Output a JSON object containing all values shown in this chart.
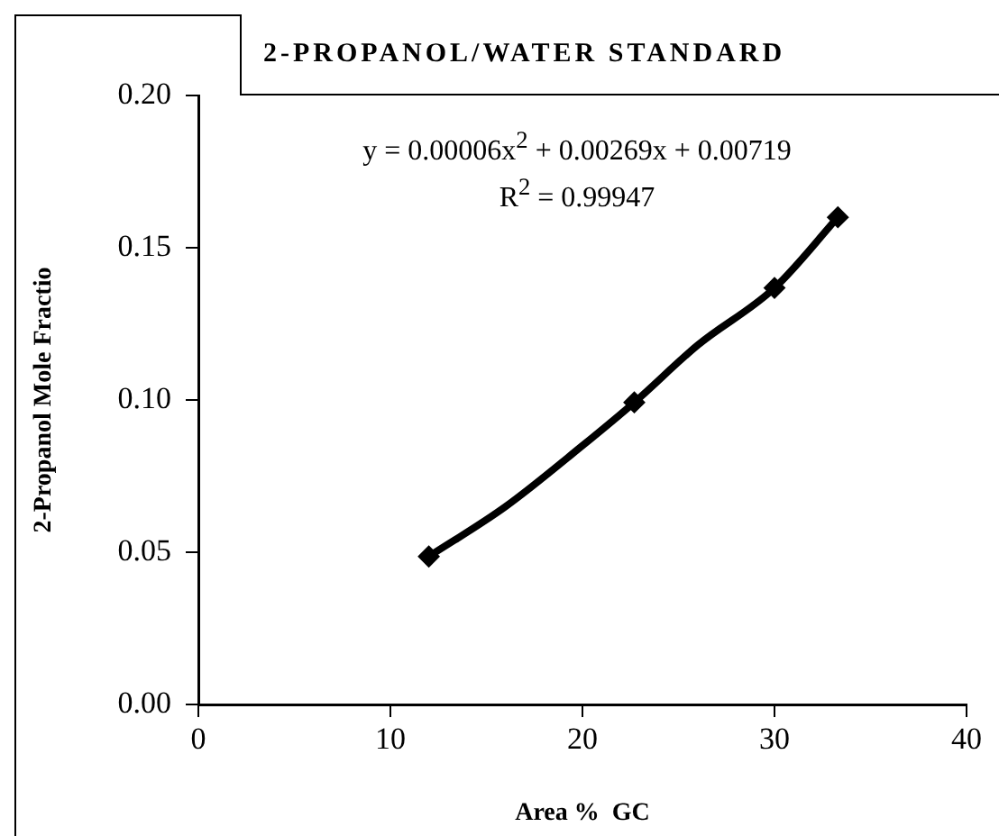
{
  "chart_data": {
    "type": "scatter",
    "title": "2-PROPANOL/WATER STANDARD",
    "xlabel": "Area %  GC",
    "ylabel": "2-Propanol Mole Fractio",
    "annotations": [
      "y = 0.00006x$^{2}$ + 0.00269x + 0.00719",
      "R$^{2}$ = 0.99947"
    ],
    "series": [
      {
        "color": "#000000",
        "x": [
          12,
          22.7,
          30,
          33.3
        ],
        "values": [
          0.0486,
          0.0992,
          0.1368,
          0.16
        ]
      },
      {
        "type": "line",
        "marker": "none",
        "color": "#000000",
        "x": [
          12,
          16,
          20,
          22.7,
          26,
          30,
          33.3
        ],
        "values": [
          0.0486,
          0.065,
          0.085,
          0.0992,
          0.118,
          0.1368,
          0.16
        ]
      }
    ],
    "xlim": [
      0,
      40
    ],
    "xticks": [
      0,
      10,
      20,
      30,
      40
    ],
    "ylim": [
      0,
      0.2
    ],
    "yticks": [
      {
        "value": 0,
        "label": "0.00"
      },
      {
        "value": 0.05,
        "label": "0.05"
      },
      {
        "value": 0.1,
        "label": "0.10"
      },
      {
        "value": 0.15,
        "label": "0.15"
      },
      {
        "value": 0.2,
        "label": "0.20"
      }
    ],
    "grid": false,
    "legend": false,
    "marker": "diamond",
    "line_style": "solid"
  }
}
